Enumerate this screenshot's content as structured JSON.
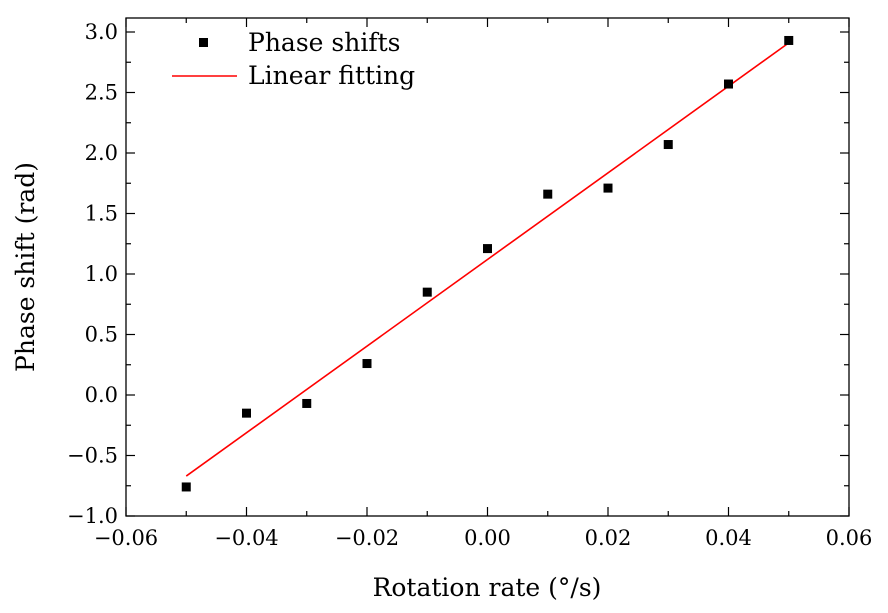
{
  "chart_data": {
    "type": "scatter",
    "title": "",
    "xlabel": "Rotation rate (°/s)",
    "ylabel": "Phase shift (rad)",
    "xlim": [
      -0.06,
      0.06
    ],
    "ylim": [
      -1.0,
      3.0
    ],
    "xticks": [
      "−0.06",
      "−0.04",
      "−0.02",
      "0.00",
      "0.02",
      "0.04",
      "0.06"
    ],
    "yticks": [
      "−1.0",
      "−0.5",
      "0.0",
      "0.5",
      "1.0",
      "1.5",
      "2.0",
      "2.5",
      "3.0"
    ],
    "grid": false,
    "legend_position": "top-left",
    "series": [
      {
        "name": "Phase shifts",
        "kind": "scatter",
        "marker": "square",
        "color": "#000000",
        "x": [
          -0.05,
          -0.04,
          -0.03,
          -0.02,
          -0.01,
          0.0,
          0.01,
          0.02,
          0.03,
          0.04,
          0.05
        ],
        "y": [
          -0.76,
          -0.15,
          -0.07,
          0.26,
          0.85,
          1.21,
          1.66,
          1.71,
          2.07,
          2.57,
          2.93
        ]
      },
      {
        "name": "Linear fitting",
        "kind": "line",
        "color": "#ff0000",
        "x": [
          -0.05,
          0.05
        ],
        "y": [
          -0.67,
          2.91
        ]
      }
    ]
  }
}
